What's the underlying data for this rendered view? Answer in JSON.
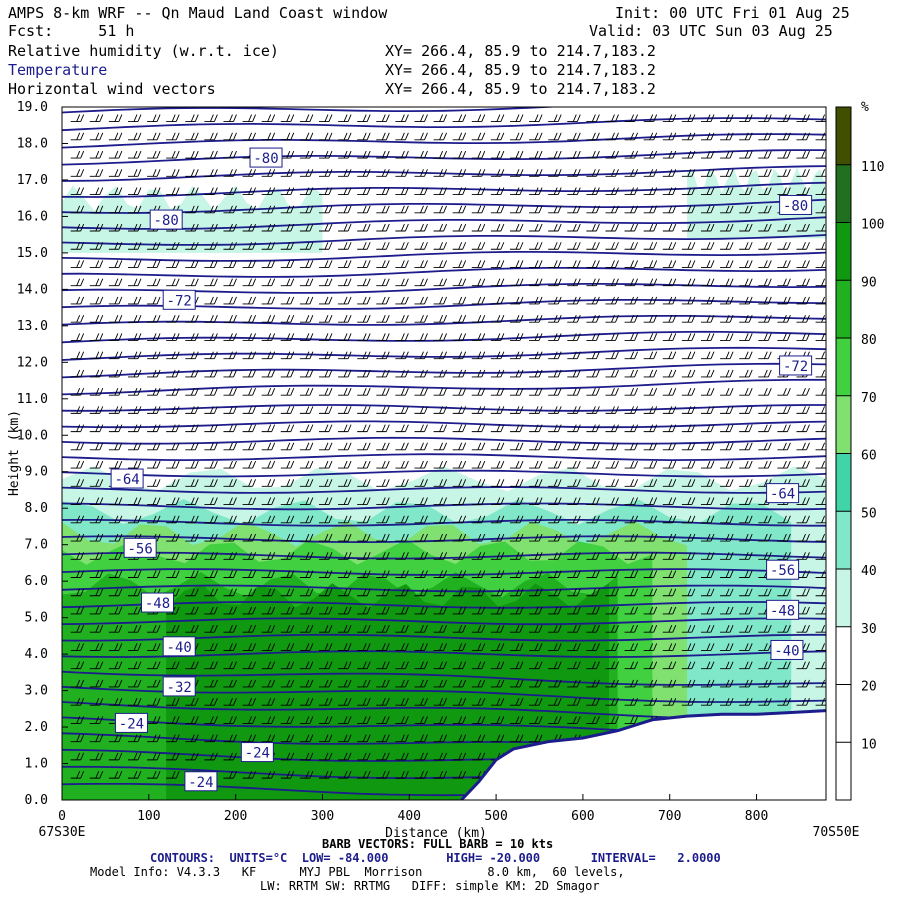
{
  "header": {
    "title": "AMPS 8-km WRF -- Qn Maud Land Coast window",
    "fcst": "Fcst:     51 h",
    "init": "Init: 00 UTC Fri 01 Aug 25",
    "valid": "Valid: 03 UTC Sun 03 Aug 25",
    "fields": [
      {
        "name": "Relative humidity (w.r.t. ice)",
        "xy": "XY= 266.4, 85.9 to 214.7,183.2"
      },
      {
        "name": "Temperature",
        "xy": "XY= 266.4, 85.9 to 214.7,183.2"
      },
      {
        "name": "Horizontal wind vectors",
        "xy": "XY= 266.4, 85.9 to 214.7,183.2"
      }
    ]
  },
  "footer": {
    "left_label": "67S30E",
    "right_label": "70S50E",
    "barb": "BARB VECTORS: FULL BARB = 10 kts",
    "contours": "CONTOURS:  UNITS=°C  LOW= -84.000        HIGH= -20.000       INTERVAL=   2.0000",
    "model1": "Model Info: V4.3.3   KF      MYJ PBL  Morrison         8.0 km,  60 levels,",
    "model2": "LW: RRTM SW: RRTMG   DIFF: simple KM: 2D Smagor"
  },
  "colors": {
    "rh_bins": [
      "#ffffff",
      "#ffffff",
      "#ffffff",
      "#c8f6e6",
      "#80e8c8",
      "#40d4a8",
      "#80e070",
      "#40d040",
      "#20b020",
      "#109810",
      "#207020",
      "#405000",
      "#cc2000"
    ],
    "contour": "#1c1c8c",
    "terrain": "#ffffff",
    "barb": "#000000"
  },
  "chart_data": {
    "type": "heatmap",
    "xlabel": "Distance (km)",
    "ylabel": "Height (km)",
    "xlim": [
      0,
      880
    ],
    "ylim": [
      0,
      19
    ],
    "x_ticks": [
      "0",
      "100",
      "200",
      "300",
      "400",
      "500",
      "600",
      "700",
      "800"
    ],
    "y_ticks": [
      "0.0",
      "1.0",
      "2.0",
      "3.0",
      "4.0",
      "5.0",
      "6.0",
      "7.0",
      "8.0",
      "9.0",
      "10.0",
      "11.0",
      "12.0",
      "13.0",
      "14.0",
      "15.0",
      "16.0",
      "17.0",
      "18.0",
      "19.0"
    ],
    "colorbar": {
      "unit": "%",
      "ticks": [
        "10",
        "20",
        "30",
        "40",
        "50",
        "60",
        "70",
        "80",
        "90",
        "100",
        "110"
      ],
      "range": [
        0,
        120
      ]
    },
    "rh_regions": [
      {
        "rh": 35,
        "x": [
          0,
          880
        ],
        "ybot": 1,
        "ytop": 8.8
      },
      {
        "rh": 45,
        "x": [
          0,
          840
        ],
        "ybot": 1,
        "ytop": 7.9
      },
      {
        "rh": 65,
        "x": [
          0,
          720
        ],
        "ybot": 1,
        "ytop": 7.3
      },
      {
        "rh": 75,
        "x": [
          0,
          680
        ],
        "ybot": 0,
        "ytop": 6.8
      },
      {
        "rh": 85,
        "x": [
          0,
          640
        ],
        "ybot": 0,
        "ytop": 5.9
      },
      {
        "rh": 95,
        "x": [
          120,
          630
        ],
        "ybot": 0,
        "ytop": 5.6
      },
      {
        "rh": 35,
        "x": [
          0,
          300
        ],
        "ybot": 15.0,
        "ytop": 16.5
      },
      {
        "rh": 35,
        "x": [
          720,
          880
        ],
        "ybot": 15.4,
        "ytop": 17.0
      }
    ],
    "terrain": {
      "x": [
        460,
        480,
        500,
        520,
        560,
        600,
        640,
        680,
        720,
        760,
        800,
        840,
        880
      ],
      "height": [
        0,
        0.5,
        1.1,
        1.4,
        1.6,
        1.7,
        1.9,
        2.2,
        2.3,
        2.35,
        2.35,
        2.4,
        2.45
      ]
    },
    "isotherm_labels": [
      {
        "value": "-80",
        "x": 235,
        "h": 17.6
      },
      {
        "value": "-80",
        "x": 120,
        "h": 15.9
      },
      {
        "value": "-80",
        "x": 845,
        "h": 16.3
      },
      {
        "value": "-72",
        "x": 135,
        "h": 13.7
      },
      {
        "value": "-72",
        "x": 845,
        "h": 11.9
      },
      {
        "value": "-64",
        "x": 75,
        "h": 8.8
      },
      {
        "value": "-64",
        "x": 830,
        "h": 8.4
      },
      {
        "value": "-56",
        "x": 90,
        "h": 6.9
      },
      {
        "value": "-56",
        "x": 830,
        "h": 6.3
      },
      {
        "value": "-48",
        "x": 110,
        "h": 5.4
      },
      {
        "value": "-48",
        "x": 830,
        "h": 5.2
      },
      {
        "value": "-40",
        "x": 135,
        "h": 4.2
      },
      {
        "value": "-40",
        "x": 835,
        "h": 4.1
      },
      {
        "value": "-32",
        "x": 135,
        "h": 3.1
      },
      {
        "value": "-24",
        "x": 80,
        "h": 2.1
      },
      {
        "value": "-24",
        "x": 160,
        "h": 0.5
      },
      {
        "value": "-24",
        "x": 225,
        "h": 1.3
      }
    ]
  }
}
